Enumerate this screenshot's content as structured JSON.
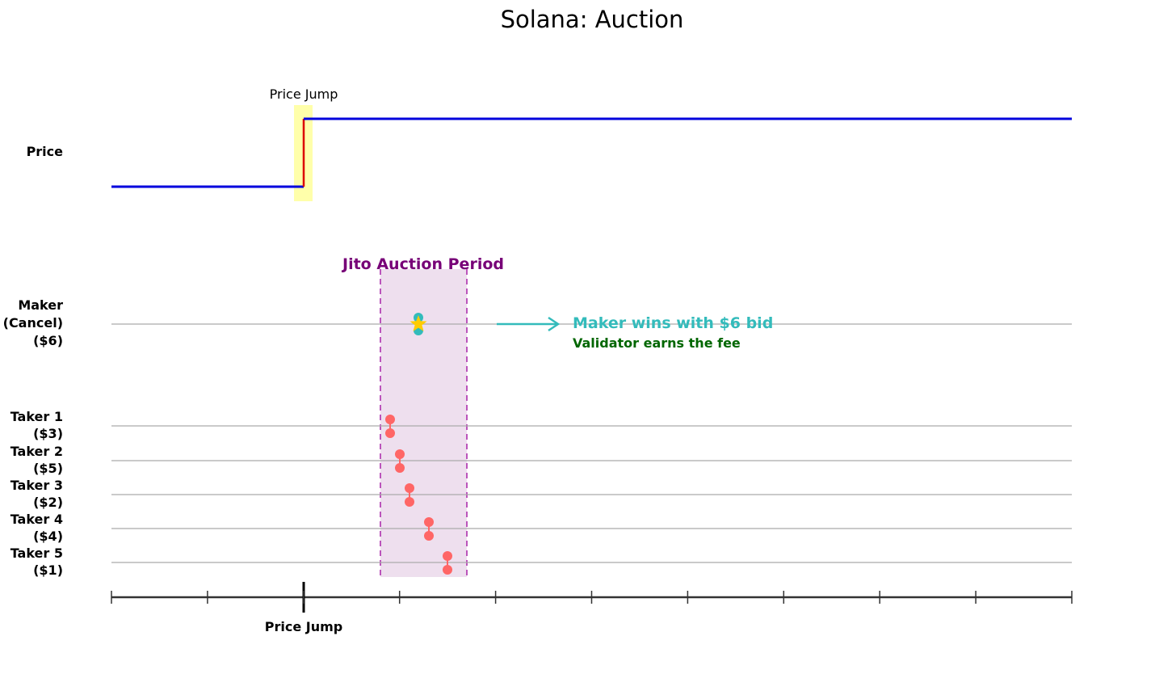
{
  "title": "Solana: Auction",
  "price_panel": {
    "row_label": "Price",
    "jump_label": "Price Jump",
    "line_color": "#0000dd",
    "jump_color": "#dd0000",
    "highlight_color": "#ffffaa"
  },
  "auction": {
    "label": "Jito Auction Period",
    "label_color": "#770077",
    "fill_color": "#eedfee",
    "border_color": "#bb55bb"
  },
  "maker": {
    "label_lines": [
      "Maker",
      "(Cancel)",
      "($6)"
    ],
    "marker_color": "#33bbbb",
    "star_color": "#ffcc00",
    "wins_text": "Maker wins with $6 bid",
    "wins_color": "#33bbbb",
    "fee_text": "Validator earns the fee",
    "fee_color": "#006600"
  },
  "takers": [
    {
      "name": "Taker 1",
      "bid": "($3)"
    },
    {
      "name": "Taker 2",
      "bid": "($5)"
    },
    {
      "name": "Taker 3",
      "bid": "($2)"
    },
    {
      "name": "Taker 4",
      "bid": "($4)"
    },
    {
      "name": "Taker 5",
      "bid": "($1)"
    }
  ],
  "taker_marker_color": "#ff6666",
  "axis": {
    "jump_label": "Price Jump",
    "tick_count": 11
  }
}
